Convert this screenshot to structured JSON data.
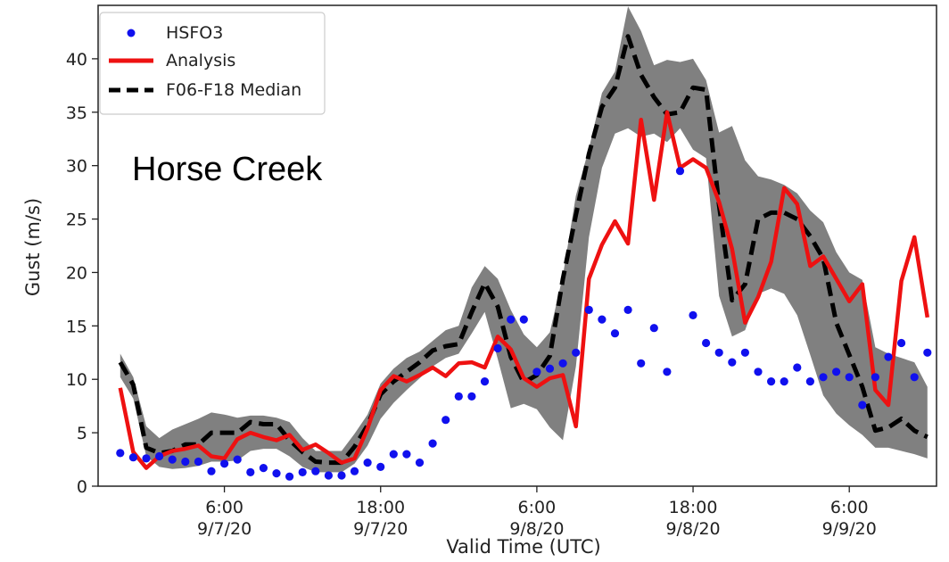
{
  "chart_data": {
    "type": "line",
    "annotation": "Horse Creek",
    "xlabel": "Valid Time (UTC)",
    "ylabel": "Gust (m/s)",
    "ylim": [
      0,
      45
    ],
    "xlim_hours": [
      -3.7,
      60.7
    ],
    "x_unit": "hours after 00:00 UTC 9/7/20",
    "x_ticks": [
      {
        "hour": 6,
        "time": "6:00",
        "date": "9/7/20"
      },
      {
        "hour": 18,
        "time": "18:00",
        "date": "9/7/20"
      },
      {
        "hour": 30,
        "time": "6:00",
        "date": "9/8/20"
      },
      {
        "hour": 42,
        "time": "18:00",
        "date": "9/8/20"
      },
      {
        "hour": 54,
        "time": "6:00",
        "date": "9/9/20"
      }
    ],
    "y_ticks": [
      0,
      5,
      10,
      15,
      20,
      25,
      30,
      35,
      40
    ],
    "grid": false,
    "legend_position": "top-left",
    "colors": {
      "observations": "#1010ee",
      "analysis": "#ee1111",
      "median": "#000000",
      "spread": "#808080"
    },
    "series": [
      {
        "name": "HSFO3",
        "style": "scatter",
        "points": [
          [
            -2,
            3.1
          ],
          [
            -1,
            2.7
          ],
          [
            0,
            2.6
          ],
          [
            1,
            2.8
          ],
          [
            2,
            2.5
          ],
          [
            3,
            2.3
          ],
          [
            4,
            2.3
          ],
          [
            5,
            1.4
          ],
          [
            6,
            2.1
          ],
          [
            7,
            2.5
          ],
          [
            8,
            1.3
          ],
          [
            9,
            1.7
          ],
          [
            10,
            1.2
          ],
          [
            11,
            0.9
          ],
          [
            12,
            1.3
          ],
          [
            13,
            1.4
          ],
          [
            14,
            1.0
          ],
          [
            15,
            1.0
          ],
          [
            16,
            1.4
          ],
          [
            17,
            2.2
          ],
          [
            18,
            1.8
          ],
          [
            19,
            3.0
          ],
          [
            20,
            3.0
          ],
          [
            21,
            2.2
          ],
          [
            22,
            4.0
          ],
          [
            23,
            6.2
          ],
          [
            24,
            8.4
          ],
          [
            25,
            8.4
          ],
          [
            26,
            9.8
          ],
          [
            27,
            12.9
          ],
          [
            28,
            15.6
          ],
          [
            29,
            15.6
          ],
          [
            30,
            10.7
          ],
          [
            31,
            11.0
          ],
          [
            32,
            11.5
          ],
          [
            33,
            12.5
          ],
          [
            34,
            16.5
          ],
          [
            35,
            15.6
          ],
          [
            36,
            14.3
          ],
          [
            37,
            16.5
          ],
          [
            38,
            11.5
          ],
          [
            39,
            14.8
          ],
          [
            40,
            10.7
          ],
          [
            41,
            29.5
          ],
          [
            42,
            16.0
          ],
          [
            43,
            13.4
          ],
          [
            44,
            12.5
          ],
          [
            45,
            11.6
          ],
          [
            46,
            12.5
          ],
          [
            47,
            10.7
          ],
          [
            48,
            9.8
          ],
          [
            49,
            9.8
          ],
          [
            50,
            11.1
          ],
          [
            51,
            9.8
          ],
          [
            52,
            10.2
          ],
          [
            53,
            10.7
          ],
          [
            54,
            10.2
          ],
          [
            55,
            7.6
          ],
          [
            56,
            10.2
          ],
          [
            57,
            12.1
          ],
          [
            58,
            13.4
          ],
          [
            59,
            10.2
          ],
          [
            60,
            12.5
          ]
        ]
      },
      {
        "name": "Analysis",
        "style": "line",
        "points": [
          [
            -2,
            9.2
          ],
          [
            -1,
            3.2
          ],
          [
            0,
            1.7
          ],
          [
            1,
            2.8
          ],
          [
            2,
            3.3
          ],
          [
            3,
            3.5
          ],
          [
            4,
            3.8
          ],
          [
            5,
            2.8
          ],
          [
            6,
            2.6
          ],
          [
            7,
            4.4
          ],
          [
            8,
            5.0
          ],
          [
            9,
            4.6
          ],
          [
            10,
            4.3
          ],
          [
            11,
            4.8
          ],
          [
            12,
            3.4
          ],
          [
            13,
            3.9
          ],
          [
            14,
            3.1
          ],
          [
            15,
            2.2
          ],
          [
            16,
            2.6
          ],
          [
            17,
            5.4
          ],
          [
            18,
            9.0
          ],
          [
            19,
            10.3
          ],
          [
            20,
            9.8
          ],
          [
            21,
            10.4
          ],
          [
            22,
            11.1
          ],
          [
            23,
            10.3
          ],
          [
            24,
            11.5
          ],
          [
            25,
            11.6
          ],
          [
            26,
            11.1
          ],
          [
            27,
            14.0
          ],
          [
            28,
            12.8
          ],
          [
            29,
            10.1
          ],
          [
            30,
            9.3
          ],
          [
            31,
            10.1
          ],
          [
            32,
            10.4
          ],
          [
            33,
            5.6
          ],
          [
            34,
            19.4
          ],
          [
            35,
            22.6
          ],
          [
            36,
            24.8
          ],
          [
            37,
            22.7
          ],
          [
            38,
            34.3
          ],
          [
            39,
            26.8
          ],
          [
            40,
            35.0
          ],
          [
            41,
            29.8
          ],
          [
            42,
            30.6
          ],
          [
            43,
            29.8
          ],
          [
            44,
            26.6
          ],
          [
            45,
            22.2
          ],
          [
            46,
            15.3
          ],
          [
            47,
            17.7
          ],
          [
            48,
            21.0
          ],
          [
            49,
            27.9
          ],
          [
            50,
            26.4
          ],
          [
            51,
            20.6
          ],
          [
            52,
            21.5
          ],
          [
            53,
            19.4
          ],
          [
            54,
            17.3
          ],
          [
            55,
            18.9
          ],
          [
            56,
            9.0
          ],
          [
            57,
            7.6
          ],
          [
            58,
            19.2
          ],
          [
            59,
            23.3
          ],
          [
            60,
            15.8
          ]
        ]
      },
      {
        "name": "F06-F18 Median",
        "style": "dashed",
        "points": [
          [
            -2,
            11.6
          ],
          [
            -1,
            9.5
          ],
          [
            0,
            3.6
          ],
          [
            1,
            3.1
          ],
          [
            2,
            3.3
          ],
          [
            3,
            3.9
          ],
          [
            4,
            3.9
          ],
          [
            5,
            5.0
          ],
          [
            6,
            5.0
          ],
          [
            7,
            5.0
          ],
          [
            8,
            6.0
          ],
          [
            9,
            5.8
          ],
          [
            10,
            5.8
          ],
          [
            11,
            4.3
          ],
          [
            12,
            3.2
          ],
          [
            13,
            2.3
          ],
          [
            14,
            2.2
          ],
          [
            15,
            2.2
          ],
          [
            16,
            3.7
          ],
          [
            17,
            5.7
          ],
          [
            18,
            8.6
          ],
          [
            19,
            9.8
          ],
          [
            20,
            10.7
          ],
          [
            21,
            11.6
          ],
          [
            22,
            12.7
          ],
          [
            23,
            13.1
          ],
          [
            24,
            13.3
          ],
          [
            25,
            16.3
          ],
          [
            26,
            19.0
          ],
          [
            27,
            16.8
          ],
          [
            28,
            12.1
          ],
          [
            29,
            9.7
          ],
          [
            30,
            10.4
          ],
          [
            31,
            12.2
          ],
          [
            32,
            19.4
          ],
          [
            33,
            25.4
          ],
          [
            34,
            31.1
          ],
          [
            35,
            35.5
          ],
          [
            36,
            37.3
          ],
          [
            37,
            42.1
          ],
          [
            38,
            38.5
          ],
          [
            39,
            36.4
          ],
          [
            40,
            34.8
          ],
          [
            41,
            35.0
          ],
          [
            42,
            37.3
          ],
          [
            43,
            37.1
          ],
          [
            44,
            26.3
          ],
          [
            45,
            17.4
          ],
          [
            46,
            18.9
          ],
          [
            47,
            25.0
          ],
          [
            48,
            25.6
          ],
          [
            49,
            25.6
          ],
          [
            50,
            25.0
          ],
          [
            51,
            23.4
          ],
          [
            52,
            21.3
          ],
          [
            53,
            15.3
          ],
          [
            54,
            12.3
          ],
          [
            55,
            9.3
          ],
          [
            56,
            5.2
          ],
          [
            57,
            5.5
          ],
          [
            58,
            6.3
          ],
          [
            59,
            5.2
          ],
          [
            60,
            4.6
          ]
        ]
      },
      {
        "name": "Ensemble spread",
        "style": "band",
        "lower": [
          [
            -2,
            10.2
          ],
          [
            -1,
            8.2
          ],
          [
            0,
            2.8
          ],
          [
            1,
            1.8
          ],
          [
            2,
            1.6
          ],
          [
            3,
            1.7
          ],
          [
            4,
            1.9
          ],
          [
            5,
            2.3
          ],
          [
            6,
            2.3
          ],
          [
            7,
            2.4
          ],
          [
            8,
            3.3
          ],
          [
            9,
            3.5
          ],
          [
            10,
            3.5
          ],
          [
            11,
            2.8
          ],
          [
            12,
            1.8
          ],
          [
            13,
            1.3
          ],
          [
            14,
            1.3
          ],
          [
            15,
            1.3
          ],
          [
            16,
            2.1
          ],
          [
            17,
            3.8
          ],
          [
            18,
            6.3
          ],
          [
            19,
            7.8
          ],
          [
            20,
            9.0
          ],
          [
            21,
            10.1
          ],
          [
            22,
            11.2
          ],
          [
            23,
            12.0
          ],
          [
            24,
            12.4
          ],
          [
            25,
            14.3
          ],
          [
            26,
            16.3
          ],
          [
            27,
            11.9
          ],
          [
            28,
            7.3
          ],
          [
            29,
            7.7
          ],
          [
            30,
            7.2
          ],
          [
            31,
            5.5
          ],
          [
            32,
            4.3
          ],
          [
            33,
            11.2
          ],
          [
            34,
            23.3
          ],
          [
            35,
            29.8
          ],
          [
            36,
            33.0
          ],
          [
            37,
            33.5
          ],
          [
            38,
            32.7
          ],
          [
            39,
            33.0
          ],
          [
            40,
            32.2
          ],
          [
            41,
            33.5
          ],
          [
            42,
            31.5
          ],
          [
            43,
            30.7
          ],
          [
            44,
            17.8
          ],
          [
            45,
            14.0
          ],
          [
            46,
            14.6
          ],
          [
            47,
            18.0
          ],
          [
            48,
            18.5
          ],
          [
            49,
            18.0
          ],
          [
            50,
            16.0
          ],
          [
            51,
            12.3
          ],
          [
            52,
            8.5
          ],
          [
            53,
            6.8
          ],
          [
            54,
            5.7
          ],
          [
            55,
            4.8
          ],
          [
            56,
            3.6
          ],
          [
            57,
            3.6
          ],
          [
            58,
            3.3
          ],
          [
            59,
            3.0
          ],
          [
            60,
            2.6
          ]
        ],
        "upper": [
          [
            -2,
            12.4
          ],
          [
            -1,
            10.2
          ],
          [
            0,
            5.6
          ],
          [
            1,
            4.5
          ],
          [
            2,
            5.3
          ],
          [
            3,
            5.8
          ],
          [
            4,
            6.3
          ],
          [
            5,
            6.9
          ],
          [
            6,
            6.7
          ],
          [
            7,
            6.4
          ],
          [
            8,
            6.6
          ],
          [
            9,
            6.6
          ],
          [
            10,
            6.4
          ],
          [
            11,
            6.0
          ],
          [
            12,
            4.5
          ],
          [
            13,
            3.3
          ],
          [
            14,
            3.3
          ],
          [
            15,
            3.3
          ],
          [
            16,
            4.9
          ],
          [
            17,
            6.7
          ],
          [
            18,
            9.6
          ],
          [
            19,
            11.0
          ],
          [
            20,
            12.0
          ],
          [
            21,
            12.6
          ],
          [
            22,
            13.6
          ],
          [
            23,
            14.6
          ],
          [
            24,
            15.0
          ],
          [
            25,
            18.6
          ],
          [
            26,
            20.6
          ],
          [
            27,
            19.4
          ],
          [
            28,
            16.5
          ],
          [
            29,
            14.2
          ],
          [
            30,
            13.0
          ],
          [
            31,
            14.4
          ],
          [
            32,
            19.7
          ],
          [
            33,
            27.2
          ],
          [
            34,
            31.6
          ],
          [
            35,
            36.8
          ],
          [
            36,
            38.8
          ],
          [
            37,
            44.9
          ],
          [
            38,
            42.6
          ],
          [
            39,
            39.4
          ],
          [
            40,
            39.9
          ],
          [
            41,
            39.7
          ],
          [
            42,
            40.0
          ],
          [
            43,
            38.0
          ],
          [
            44,
            33.1
          ],
          [
            45,
            33.7
          ],
          [
            46,
            30.5
          ],
          [
            47,
            29.0
          ],
          [
            48,
            28.7
          ],
          [
            49,
            28.2
          ],
          [
            50,
            27.4
          ],
          [
            51,
            25.8
          ],
          [
            52,
            24.7
          ],
          [
            53,
            21.9
          ],
          [
            54,
            20.0
          ],
          [
            55,
            19.3
          ],
          [
            56,
            13.0
          ],
          [
            57,
            12.4
          ],
          [
            58,
            12.0
          ],
          [
            59,
            11.6
          ],
          [
            60,
            9.3
          ]
        ]
      }
    ]
  }
}
